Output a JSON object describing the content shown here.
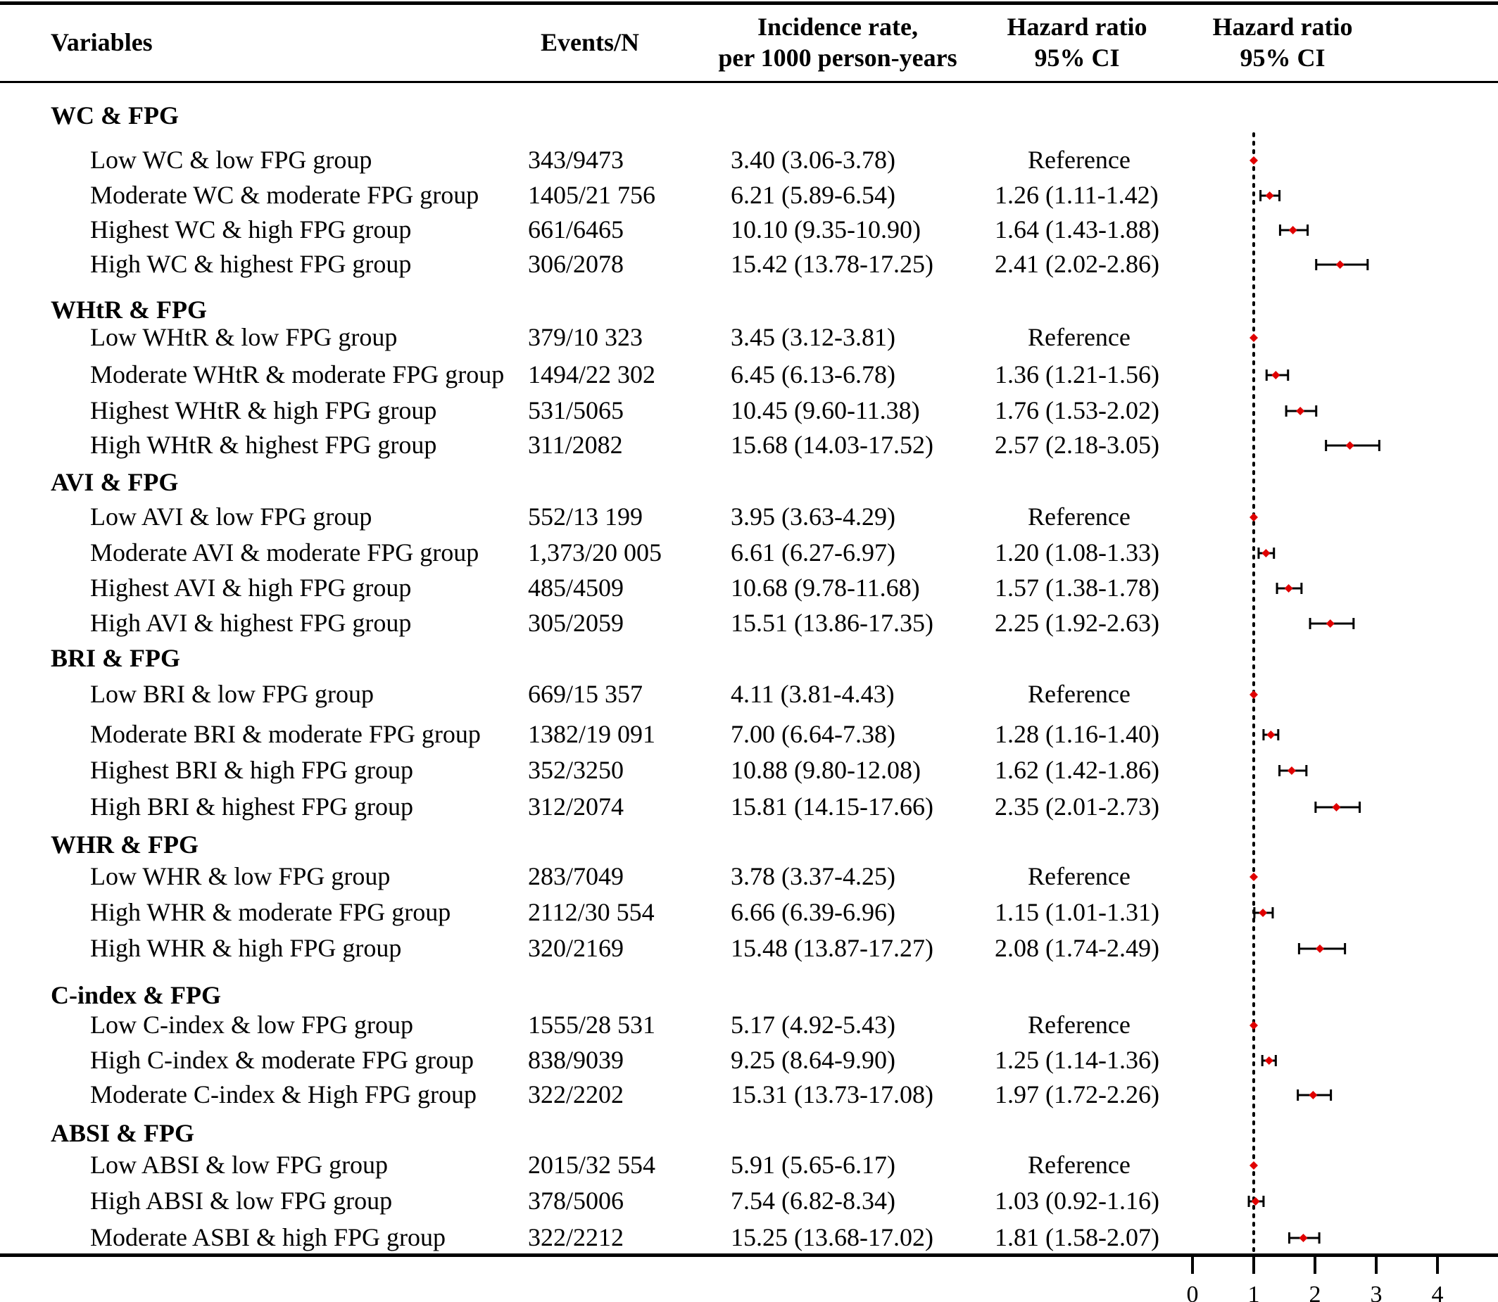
{
  "headers": {
    "variables": "Variables",
    "events": "Events/N",
    "incidence_line1": "Incidence rate,",
    "incidence_line2": "per 1000 person-years",
    "hr1_line1": "Hazard ratio",
    "hr1_line2": "95% CI",
    "hr2_line1": "Hazard ratio",
    "hr2_line2": "95% CI"
  },
  "groups": [
    {
      "title": "WC & FPG",
      "rows": [
        {
          "label": "Low WC & low FPG group",
          "events": "343/9473",
          "incidence": "3.40 (3.06-3.78)",
          "hr_text": "Reference"
        },
        {
          "label": "Moderate WC & moderate FPG group",
          "events": "1405/21 756",
          "incidence": "6.21 (5.89-6.54)",
          "hr_text": "1.26 (1.11-1.42)"
        },
        {
          "label": "Highest WC & high FPG group",
          "events": "661/6465",
          "incidence": "10.10 (9.35-10.90)",
          "hr_text": "1.64 (1.43-1.88)"
        },
        {
          "label": "High WC & highest FPG group",
          "events": "306/2078",
          "incidence": "15.42 (13.78-17.25)",
          "hr_text": "2.41 (2.02-2.86)"
        }
      ]
    },
    {
      "title": "WHtR & FPG",
      "rows": [
        {
          "label": "Low WHtR & low FPG group",
          "events": "379/10 323",
          "incidence": "3.45 (3.12-3.81)",
          "hr_text": "Reference"
        },
        {
          "label": "Moderate WHtR & moderate FPG group",
          "events": "1494/22 302",
          "incidence": "6.45 (6.13-6.78)",
          "hr_text": "1.36 (1.21-1.56)"
        },
        {
          "label": "Highest WHtR & high FPG group",
          "events": "531/5065",
          "incidence": "10.45 (9.60-11.38)",
          "hr_text": "1.76 (1.53-2.02)"
        },
        {
          "label": "High WHtR & highest FPG group",
          "events": "311/2082",
          "incidence": "15.68 (14.03-17.52)",
          "hr_text": "2.57 (2.18-3.05)"
        }
      ]
    },
    {
      "title": "AVI & FPG",
      "rows": [
        {
          "label": "Low AVI & low FPG group",
          "events": "552/13 199",
          "incidence": "3.95 (3.63-4.29)",
          "hr_text": "Reference"
        },
        {
          "label": "Moderate AVI & moderate FPG group",
          "events": "1,373/20 005",
          "incidence": "6.61 (6.27-6.97)",
          "hr_text": "1.20 (1.08-1.33)"
        },
        {
          "label": "Highest AVI & high FPG group",
          "events": "485/4509",
          "incidence": "10.68 (9.78-11.68)",
          "hr_text": "1.57 (1.38-1.78)"
        },
        {
          "label": "High AVI & highest FPG group",
          "events": "305/2059",
          "incidence": "15.51 (13.86-17.35)",
          "hr_text": "2.25 (1.92-2.63)"
        }
      ]
    },
    {
      "title": "BRI & FPG",
      "rows": [
        {
          "label": "Low BRI & low FPG group",
          "events": "669/15 357",
          "incidence": "4.11 (3.81-4.43)",
          "hr_text": "Reference"
        },
        {
          "label": "Moderate BRI & moderate FPG group",
          "events": "1382/19 091",
          "incidence": "7.00 (6.64-7.38)",
          "hr_text": "1.28 (1.16-1.40)"
        },
        {
          "label": "Highest BRI & high FPG group",
          "events": "352/3250",
          "incidence": "10.88 (9.80-12.08)",
          "hr_text": "1.62 (1.42-1.86)"
        },
        {
          "label": "High BRI & highest FPG group",
          "events": "312/2074",
          "incidence": "15.81 (14.15-17.66)",
          "hr_text": "2.35 (2.01-2.73)"
        }
      ]
    },
    {
      "title": "WHR & FPG",
      "rows": [
        {
          "label": "Low WHR & low FPG group",
          "events": "283/7049",
          "incidence": "3.78 (3.37-4.25)",
          "hr_text": "Reference"
        },
        {
          "label": "High WHR & moderate FPG group",
          "events": "2112/30 554",
          "incidence": "6.66 (6.39-6.96)",
          "hr_text": "1.15 (1.01-1.31)"
        },
        {
          "label": "High WHR & high FPG group",
          "events": "320/2169",
          "incidence": "15.48 (13.87-17.27)",
          "hr_text": "2.08 (1.74-2.49)"
        }
      ]
    },
    {
      "title": "C-index & FPG",
      "rows": [
        {
          "label": "Low C-index & low FPG group",
          "events": "1555/28 531",
          "incidence": "5.17 (4.92-5.43)",
          "hr_text": "Reference"
        },
        {
          "label": "High C-index & moderate FPG group",
          "events": "838/9039",
          "incidence": "9.25 (8.64-9.90)",
          "hr_text": "1.25 (1.14-1.36)"
        },
        {
          "label": "Moderate C-index & High FPG group",
          "events": "322/2202",
          "incidence": "15.31 (13.73-17.08)",
          "hr_text": "1.97 (1.72-2.26)"
        }
      ]
    },
    {
      "title": "ABSI & FPG",
      "rows": [
        {
          "label": "Low ABSI & low FPG group",
          "events": "2015/32 554",
          "incidence": "5.91 (5.65-6.17)",
          "hr_text": "Reference"
        },
        {
          "label": "High ABSI & low FPG group",
          "events": "378/5006",
          "incidence": "7.54 (6.82-8.34)",
          "hr_text": "1.03 (0.92-1.16)"
        },
        {
          "label": "Moderate ASBI & high FPG group",
          "events": "322/2212",
          "incidence": "15.25 (13.68-17.02)",
          "hr_text": "1.81 (1.58-2.07)"
        }
      ]
    }
  ],
  "chart_data": {
    "type": "scatter",
    "subtype": "forest",
    "title": "",
    "xlabel": "",
    "ylabel": "",
    "xlim": [
      0,
      4
    ],
    "xticks": [
      "0",
      "1",
      "2",
      "3",
      "4"
    ],
    "reference_line_x": 1,
    "marker_color": "#e00000",
    "series": [
      {
        "name": "WC & FPG",
        "hr": [
          1.0,
          1.26,
          1.64,
          2.41
        ],
        "lower": [
          1.0,
          1.11,
          1.43,
          2.02
        ],
        "upper": [
          1.0,
          1.42,
          1.88,
          2.86
        ]
      },
      {
        "name": "WHtR & FPG",
        "hr": [
          1.0,
          1.36,
          1.76,
          2.57
        ],
        "lower": [
          1.0,
          1.21,
          1.53,
          2.18
        ],
        "upper": [
          1.0,
          1.56,
          2.02,
          3.05
        ]
      },
      {
        "name": "AVI & FPG",
        "hr": [
          1.0,
          1.2,
          1.57,
          2.25
        ],
        "lower": [
          1.0,
          1.08,
          1.38,
          1.92
        ],
        "upper": [
          1.0,
          1.33,
          1.78,
          2.63
        ]
      },
      {
        "name": "BRI & FPG",
        "hr": [
          1.0,
          1.28,
          1.62,
          2.35
        ],
        "lower": [
          1.0,
          1.16,
          1.42,
          2.01
        ],
        "upper": [
          1.0,
          1.4,
          1.86,
          2.73
        ]
      },
      {
        "name": "WHR & FPG",
        "hr": [
          1.0,
          1.15,
          2.08
        ],
        "lower": [
          1.0,
          1.01,
          1.74
        ],
        "upper": [
          1.0,
          1.31,
          2.49
        ]
      },
      {
        "name": "C-index & FPG",
        "hr": [
          1.0,
          1.25,
          1.97
        ],
        "lower": [
          1.0,
          1.14,
          1.72
        ],
        "upper": [
          1.0,
          1.36,
          2.26
        ]
      },
      {
        "name": "ABSI & FPG",
        "hr": [
          1.0,
          1.03,
          1.81
        ],
        "lower": [
          1.0,
          0.92,
          1.58
        ],
        "upper": [
          1.0,
          1.16,
          2.07
        ]
      }
    ]
  }
}
